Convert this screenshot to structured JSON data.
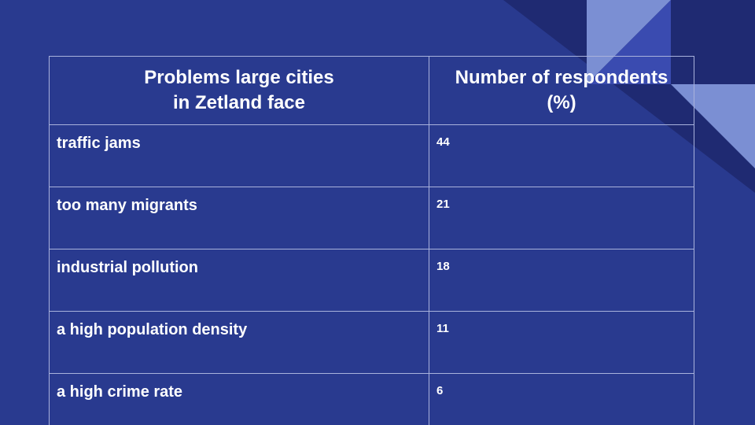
{
  "colors": {
    "background": "#293a8f",
    "accent_light": "#7e90d4",
    "accent_mid": "#3a4ab0",
    "accent_dark": "#1f2a70",
    "text": "#ffffff"
  },
  "table": {
    "headers": {
      "problems_line1": "Problems large cities",
      "problems_line2": "in Zetland face",
      "respondents_line1": "Number of respondents",
      "respondents_line2": "(%)"
    },
    "rows": [
      {
        "problem": "traffic jams",
        "value": "44"
      },
      {
        "problem": "too many migrants",
        "value": "21"
      },
      {
        "problem": "industrial pollution",
        "value": "18"
      },
      {
        "problem": "a high population density",
        "value": "11"
      },
      {
        "problem": "a high crime rate",
        "value": "6"
      }
    ]
  }
}
